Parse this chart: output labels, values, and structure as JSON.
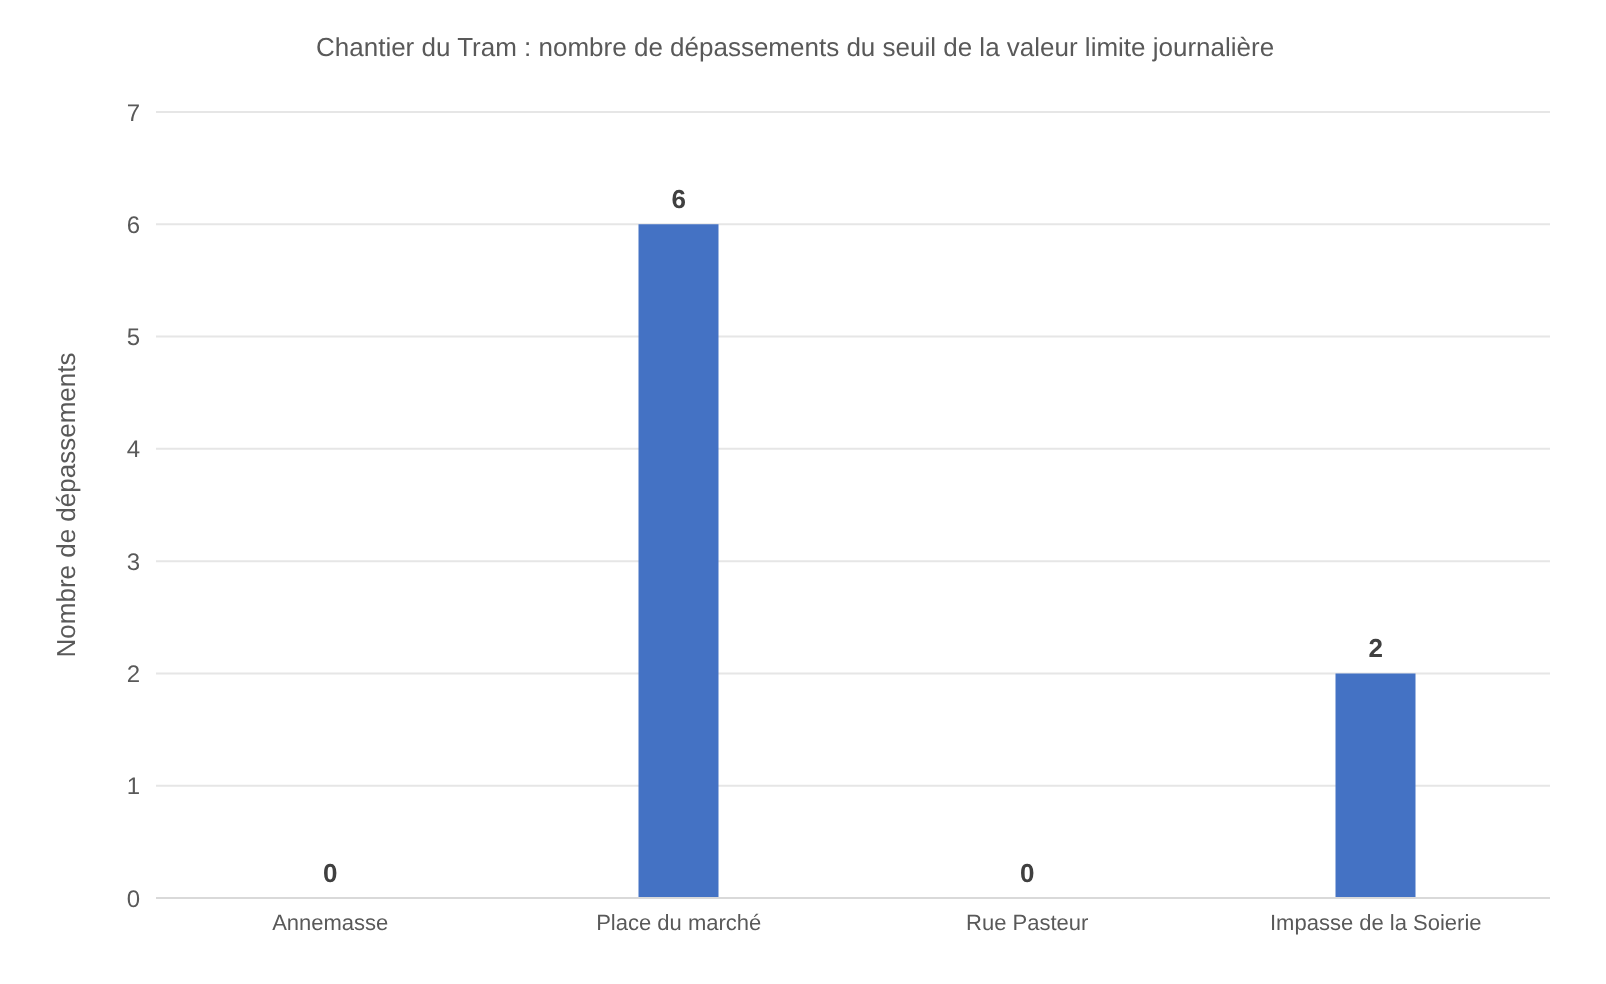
{
  "chart_data": {
    "type": "bar",
    "title": "Chantier du Tram : nombre de dépassements du seuil de la valeur limite journalière",
    "ylabel": "Nombre de dépassements",
    "categories": [
      "Annemasse",
      "Place du marché",
      "Rue Pasteur",
      "Impasse de la Soierie"
    ],
    "values": [
      0,
      6,
      0,
      2
    ],
    "color": "#4472c4",
    "ylim": [
      0,
      7
    ],
    "yticks": [
      0,
      1,
      2,
      3,
      4,
      5,
      6,
      7
    ],
    "grid": "y",
    "data_labels": true
  }
}
